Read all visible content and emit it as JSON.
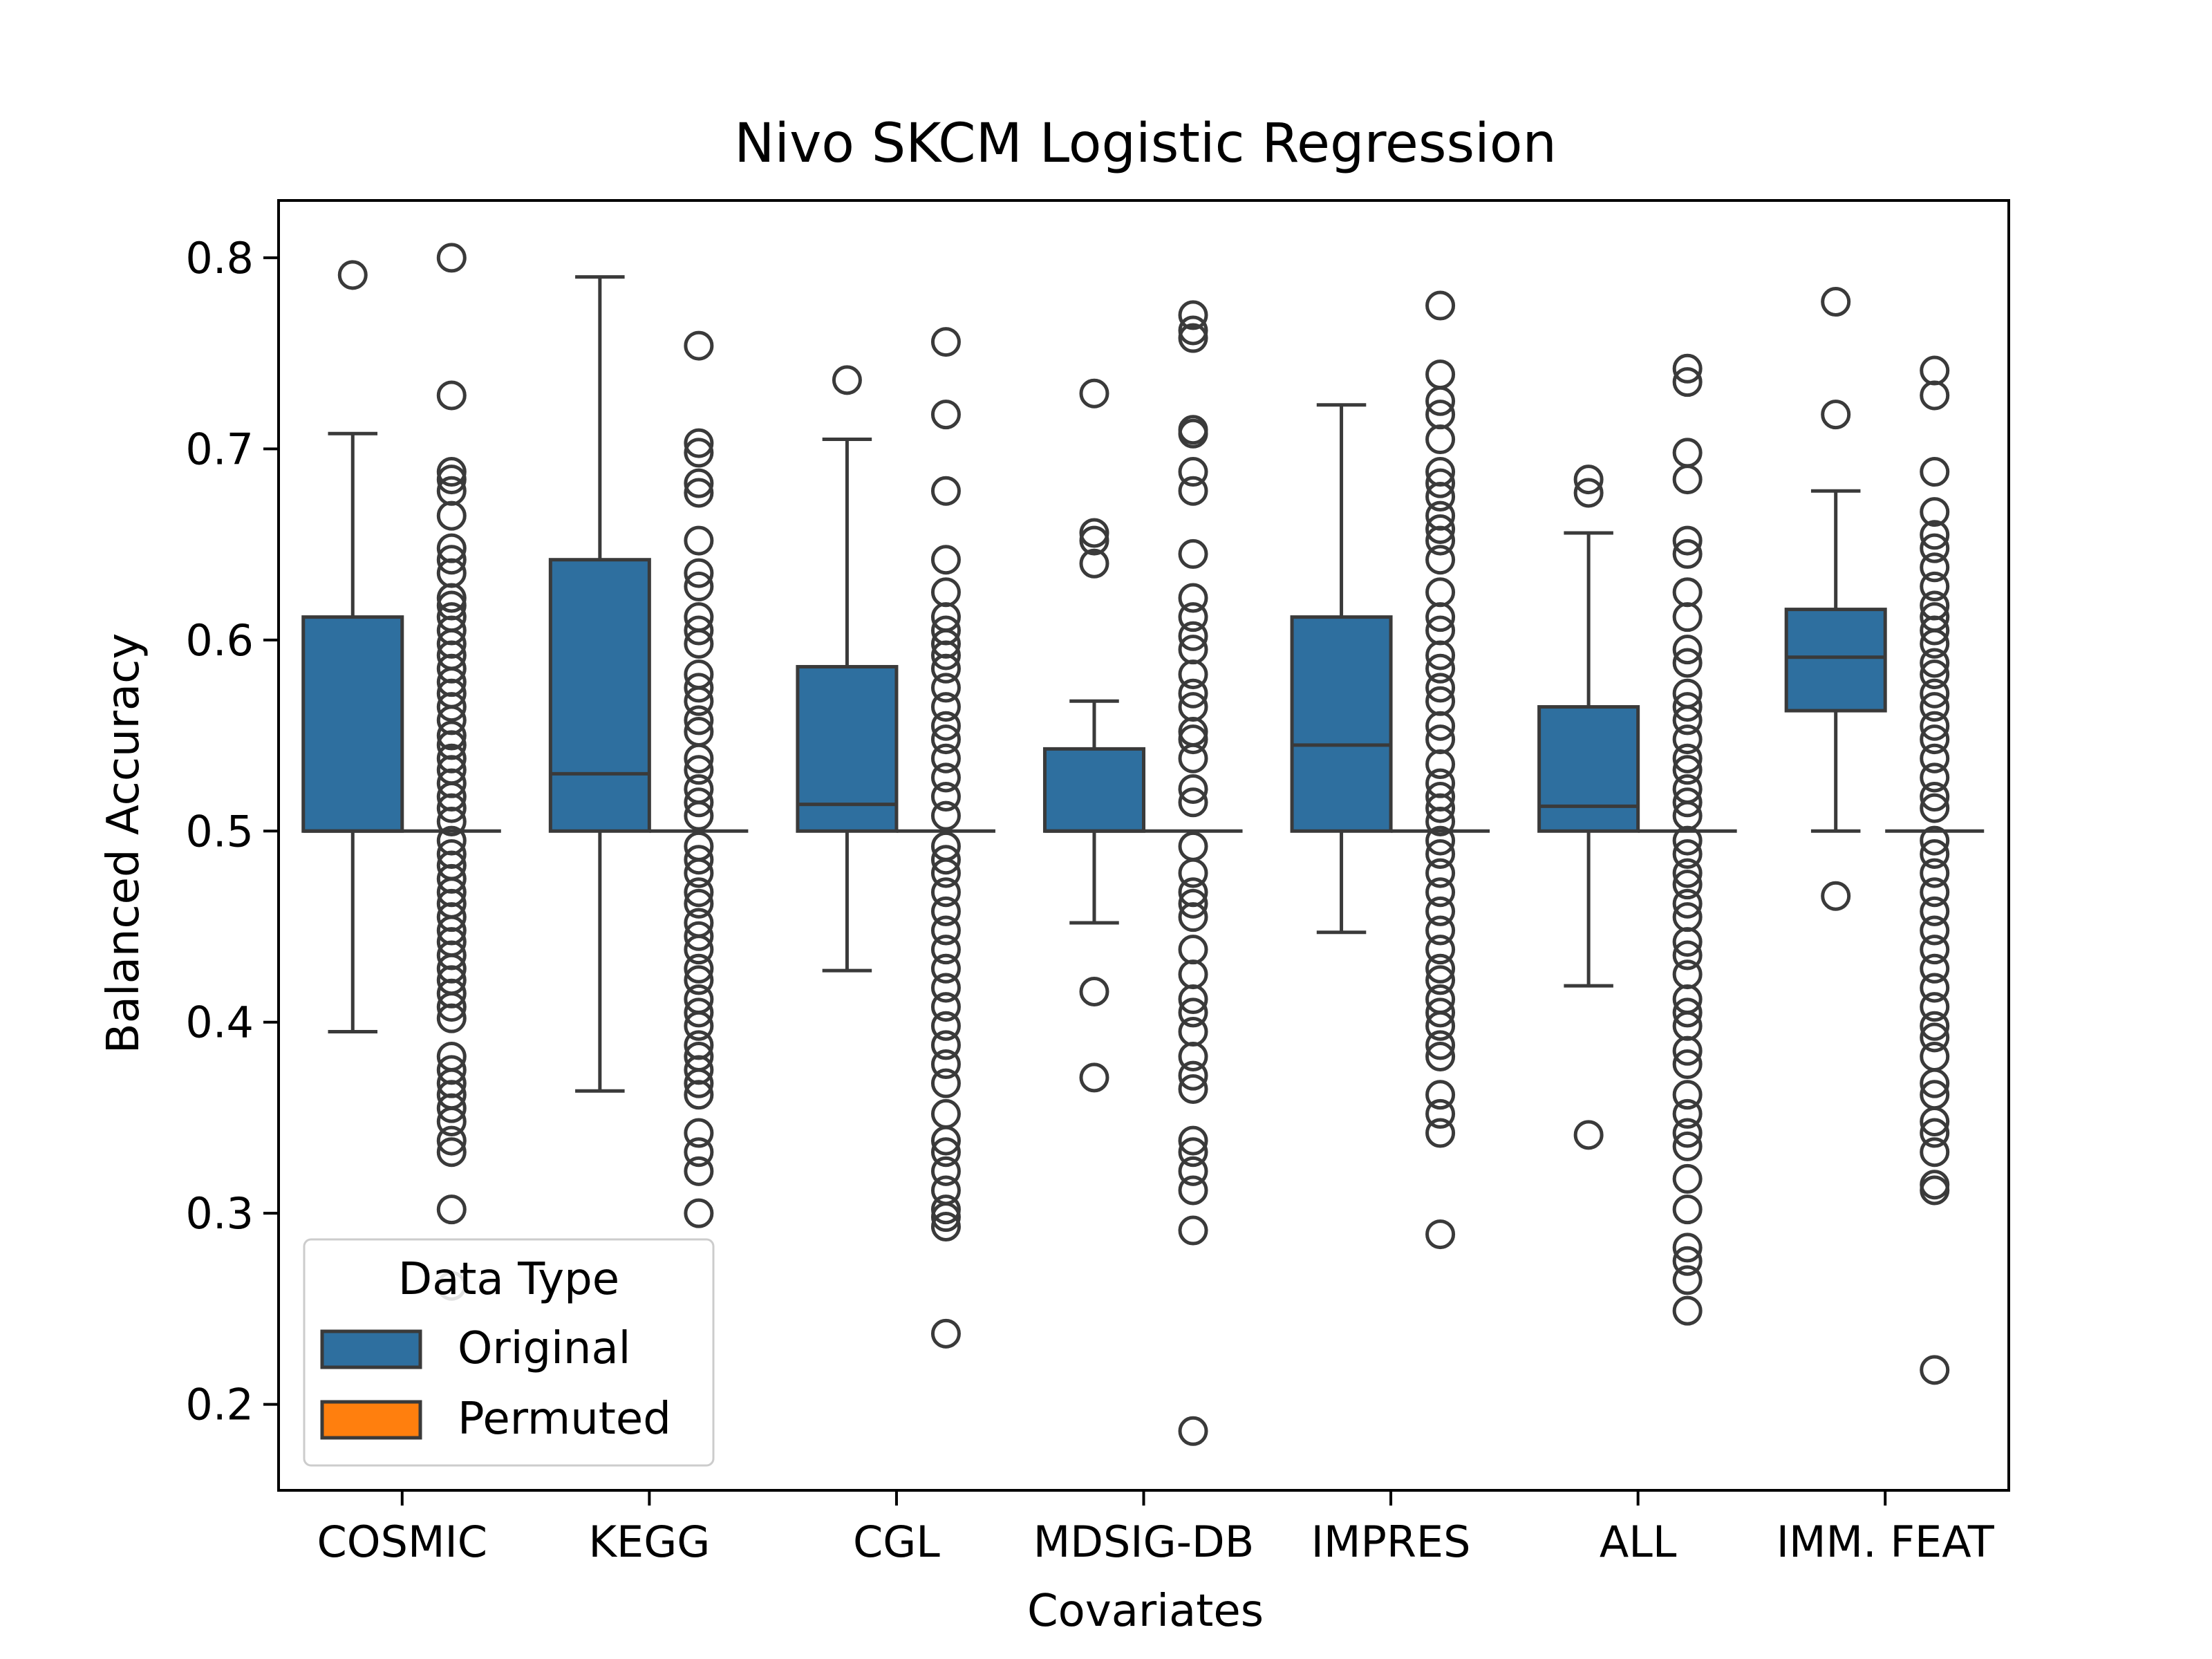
{
  "chart_data": {
    "type": "box",
    "title": "Nivo  SKCM  Logistic Regression",
    "xlabel": "Covariates",
    "ylabel": "Balanced Accuracy",
    "ylim": [
      0.155,
      0.83
    ],
    "yticks": [
      0.2,
      0.3,
      0.4,
      0.5,
      0.6,
      0.7,
      0.8
    ],
    "ytick_labels": [
      "0.2",
      "0.3",
      "0.4",
      "0.5",
      "0.6",
      "0.7",
      "0.8"
    ],
    "categories": [
      "COSMIC",
      "KEGG",
      "CGL",
      "MDSIG-DB",
      "IMPRES",
      "ALL",
      "IMM. FEAT"
    ],
    "legend": {
      "title": "Data Type",
      "position": "lower-left",
      "entries": [
        {
          "label": "Original",
          "color": "#1f77b4"
        },
        {
          "label": "Permuted",
          "color": "#ff7f0e"
        }
      ]
    },
    "colors": {
      "box_fill": "#2e6f9f",
      "line": "#3a3a3a"
    },
    "series": [
      {
        "name": "Original",
        "boxes": [
          {
            "category": "COSMIC",
            "whisker_low": 0.395,
            "q1": 0.5,
            "median": 0.5,
            "q3": 0.612,
            "whisker_high": 0.708,
            "outliers": [
              0.791
            ]
          },
          {
            "category": "KEGG",
            "whisker_low": 0.364,
            "q1": 0.5,
            "median": 0.53,
            "q3": 0.642,
            "whisker_high": 0.79,
            "outliers": []
          },
          {
            "category": "CGL",
            "whisker_low": 0.427,
            "q1": 0.5,
            "median": 0.514,
            "q3": 0.586,
            "whisker_high": 0.705,
            "outliers": [
              0.736
            ]
          },
          {
            "category": "MDSIG-DB",
            "whisker_low": 0.452,
            "q1": 0.5,
            "median": 0.5,
            "q3": 0.543,
            "whisker_high": 0.568,
            "outliers": [
              0.729,
              0.656,
              0.652,
              0.64,
              0.416,
              0.371
            ]
          },
          {
            "category": "IMPRES",
            "whisker_low": 0.447,
            "q1": 0.5,
            "median": 0.545,
            "q3": 0.612,
            "whisker_high": 0.723,
            "outliers": []
          },
          {
            "category": "ALL",
            "whisker_low": 0.419,
            "q1": 0.5,
            "median": 0.513,
            "q3": 0.565,
            "whisker_high": 0.656,
            "outliers": [
              0.684,
              0.677,
              0.341
            ]
          },
          {
            "category": "IMM. FEAT",
            "whisker_low": 0.5,
            "q1": 0.563,
            "median": 0.591,
            "q3": 0.616,
            "whisker_high": 0.678,
            "outliers": [
              0.777,
              0.718,
              0.466
            ]
          }
        ]
      },
      {
        "name": "Permuted",
        "boxes": [
          {
            "category": "COSMIC",
            "median": 0.5,
            "outliers": [
              0.8,
              0.728,
              0.688,
              0.684,
              0.678,
              0.665,
              0.648,
              0.642,
              0.635,
              0.622,
              0.618,
              0.612,
              0.605,
              0.598,
              0.592,
              0.585,
              0.578,
              0.572,
              0.565,
              0.558,
              0.55,
              0.545,
              0.538,
              0.532,
              0.525,
              0.518,
              0.512,
              0.505,
              0.495,
              0.488,
              0.482,
              0.475,
              0.468,
              0.462,
              0.455,
              0.448,
              0.442,
              0.435,
              0.428,
              0.422,
              0.415,
              0.408,
              0.402,
              0.382,
              0.375,
              0.368,
              0.362,
              0.355,
              0.348,
              0.338,
              0.332,
              0.302,
              0.262
            ]
          },
          {
            "category": "KEGG",
            "median": 0.5,
            "outliers": [
              0.754,
              0.703,
              0.698,
              0.682,
              0.677,
              0.652,
              0.635,
              0.628,
              0.612,
              0.605,
              0.598,
              0.582,
              0.575,
              0.568,
              0.558,
              0.552,
              0.538,
              0.532,
              0.522,
              0.515,
              0.508,
              0.492,
              0.485,
              0.478,
              0.468,
              0.462,
              0.452,
              0.445,
              0.438,
              0.428,
              0.422,
              0.412,
              0.405,
              0.398,
              0.388,
              0.382,
              0.375,
              0.368,
              0.362,
              0.342,
              0.332,
              0.322,
              0.3
            ]
          },
          {
            "category": "CGL",
            "median": 0.5,
            "outliers": [
              0.756,
              0.718,
              0.678,
              0.642,
              0.625,
              0.612,
              0.605,
              0.598,
              0.592,
              0.585,
              0.575,
              0.565,
              0.555,
              0.548,
              0.538,
              0.528,
              0.518,
              0.508,
              0.492,
              0.485,
              0.478,
              0.468,
              0.458,
              0.448,
              0.438,
              0.428,
              0.418,
              0.408,
              0.398,
              0.388,
              0.378,
              0.368,
              0.352,
              0.338,
              0.332,
              0.322,
              0.312,
              0.302,
              0.298,
              0.293,
              0.237
            ]
          },
          {
            "category": "MDSIG-DB",
            "median": 0.5,
            "outliers": [
              0.77,
              0.762,
              0.758,
              0.71,
              0.708,
              0.688,
              0.678,
              0.645,
              0.622,
              0.612,
              0.602,
              0.595,
              0.582,
              0.572,
              0.565,
              0.552,
              0.548,
              0.538,
              0.522,
              0.515,
              0.492,
              0.478,
              0.468,
              0.462,
              0.455,
              0.438,
              0.425,
              0.412,
              0.405,
              0.395,
              0.382,
              0.372,
              0.365,
              0.338,
              0.332,
              0.322,
              0.312,
              0.291,
              0.186
            ]
          },
          {
            "category": "IMPRES",
            "median": 0.5,
            "outliers": [
              0.775,
              0.739,
              0.725,
              0.718,
              0.705,
              0.688,
              0.682,
              0.675,
              0.665,
              0.658,
              0.652,
              0.642,
              0.625,
              0.612,
              0.605,
              0.592,
              0.585,
              0.575,
              0.568,
              0.555,
              0.548,
              0.535,
              0.525,
              0.518,
              0.512,
              0.505,
              0.495,
              0.488,
              0.478,
              0.468,
              0.458,
              0.448,
              0.438,
              0.428,
              0.422,
              0.412,
              0.405,
              0.398,
              0.388,
              0.382,
              0.362,
              0.352,
              0.342,
              0.289
            ]
          },
          {
            "category": "ALL",
            "median": 0.5,
            "outliers": [
              0.742,
              0.735,
              0.698,
              0.684,
              0.652,
              0.645,
              0.625,
              0.612,
              0.595,
              0.588,
              0.572,
              0.565,
              0.558,
              0.548,
              0.538,
              0.532,
              0.522,
              0.515,
              0.508,
              0.495,
              0.488,
              0.478,
              0.472,
              0.462,
              0.455,
              0.442,
              0.435,
              0.425,
              0.412,
              0.405,
              0.398,
              0.385,
              0.378,
              0.362,
              0.352,
              0.342,
              0.335,
              0.318,
              0.302,
              0.282,
              0.275,
              0.265,
              0.249
            ]
          },
          {
            "category": "IMM. FEAT",
            "median": 0.5,
            "outliers": [
              0.741,
              0.728,
              0.688,
              0.667,
              0.655,
              0.648,
              0.638,
              0.628,
              0.618,
              0.612,
              0.605,
              0.598,
              0.588,
              0.582,
              0.572,
              0.565,
              0.555,
              0.548,
              0.538,
              0.528,
              0.518,
              0.512,
              0.495,
              0.488,
              0.478,
              0.468,
              0.458,
              0.448,
              0.438,
              0.428,
              0.418,
              0.408,
              0.398,
              0.392,
              0.382,
              0.368,
              0.362,
              0.348,
              0.342,
              0.332,
              0.315,
              0.312,
              0.218
            ]
          }
        ]
      }
    ]
  }
}
